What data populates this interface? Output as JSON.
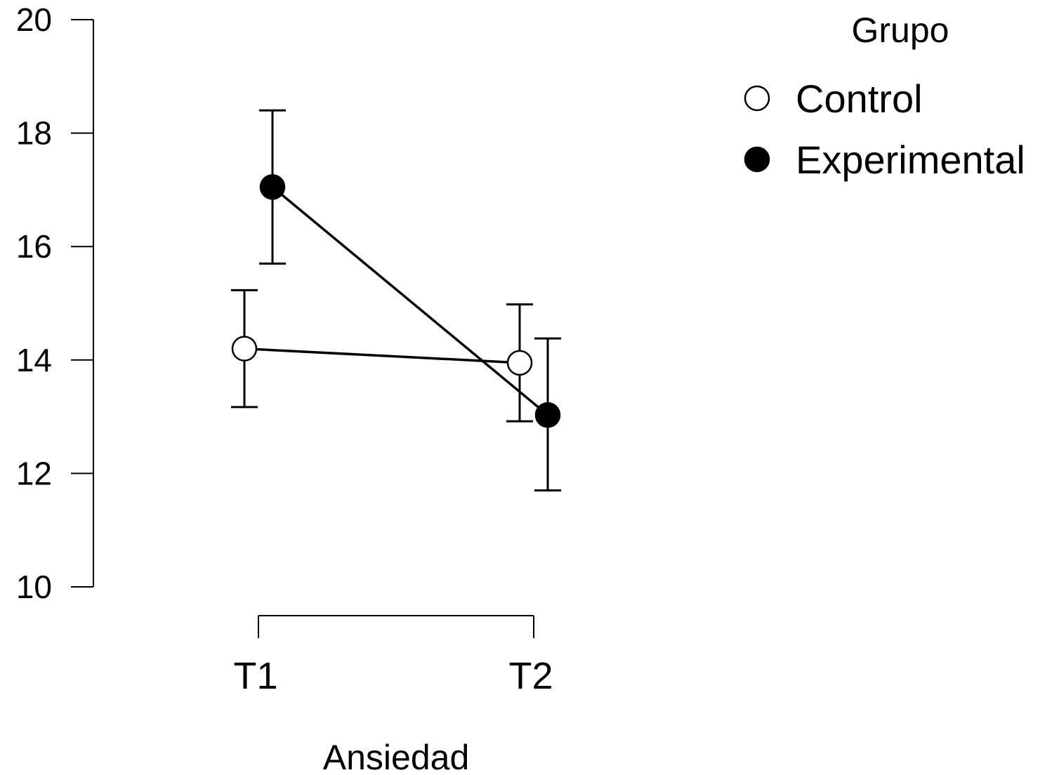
{
  "chart_data": {
    "type": "line",
    "xlabel": "Ansiedad",
    "ylabel": "",
    "categories": [
      "T1",
      "T2"
    ],
    "ylim": [
      10,
      20
    ],
    "yticks": [
      10,
      12,
      14,
      16,
      18,
      20
    ],
    "grid": false,
    "legend": {
      "title": "Grupo",
      "placement": "top-right"
    },
    "series": [
      {
        "name": "Control",
        "marker": "open-circle",
        "color": "#000000",
        "fill": "#ffffff",
        "values": [
          14.2,
          13.95
        ],
        "error_low": [
          13.17,
          12.92
        ],
        "error_high": [
          15.23,
          14.98
        ]
      },
      {
        "name": "Experimental",
        "marker": "filled-circle",
        "color": "#000000",
        "fill": "#000000",
        "values": [
          17.05,
          13.03
        ],
        "error_low": [
          15.7,
          11.7
        ],
        "error_high": [
          18.4,
          14.38
        ]
      }
    ]
  }
}
